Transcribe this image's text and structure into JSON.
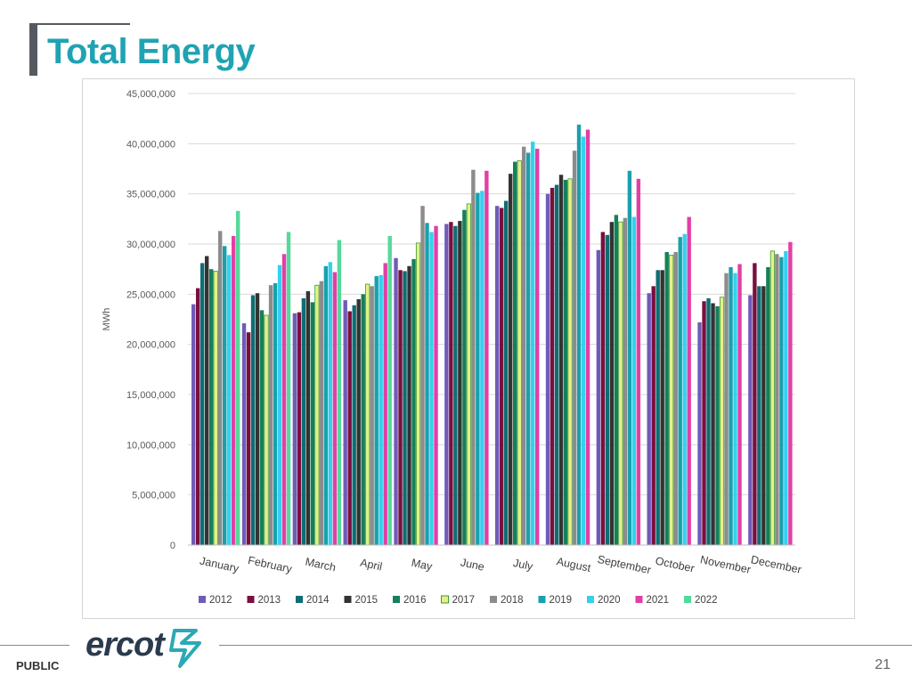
{
  "header": {
    "title": "Total Energy"
  },
  "footer": {
    "public_label": "PUBLIC",
    "page_number": "21",
    "logo_text": "ercot"
  },
  "colors": {
    "title": "#1fa3b3",
    "grid": "#d9d9d9",
    "axis_text": "#595959"
  },
  "chart_data": {
    "type": "bar",
    "title": "",
    "xlabel": "",
    "ylabel": "MWh",
    "ylim": [
      0,
      45000000
    ],
    "yticks": [
      0,
      5000000,
      10000000,
      15000000,
      20000000,
      25000000,
      30000000,
      35000000,
      40000000,
      45000000
    ],
    "ytick_labels": [
      "0",
      "5,000,000",
      "10,000,000",
      "15,000,000",
      "20,000,000",
      "25,000,000",
      "30,000,000",
      "35,000,000",
      "40,000,000",
      "45,000,000"
    ],
    "grid": true,
    "legend_position": "bottom",
    "categories": [
      "January",
      "February",
      "March",
      "April",
      "May",
      "June",
      "July",
      "August",
      "September",
      "October",
      "November",
      "December"
    ],
    "series": [
      {
        "name": "2012",
        "color": "#6f5bb8",
        "values": [
          24000000,
          22100000,
          23100000,
          24400000,
          28600000,
          32000000,
          33800000,
          35000000,
          29400000,
          25100000,
          22200000,
          24900000
        ]
      },
      {
        "name": "2013",
        "color": "#7a0f3e",
        "values": [
          25600000,
          21200000,
          23200000,
          23300000,
          27400000,
          32200000,
          33600000,
          35600000,
          31200000,
          25800000,
          24300000,
          28100000
        ]
      },
      {
        "name": "2014",
        "color": "#0e6e73",
        "values": [
          28100000,
          24900000,
          24600000,
          23900000,
          27300000,
          31800000,
          34300000,
          35900000,
          30900000,
          27400000,
          24600000,
          25800000
        ]
      },
      {
        "name": "2015",
        "color": "#333333",
        "values": [
          28800000,
          25100000,
          25300000,
          24500000,
          27800000,
          32300000,
          37000000,
          36900000,
          32200000,
          27400000,
          24100000,
          25800000
        ]
      },
      {
        "name": "2016",
        "color": "#15805a",
        "values": [
          27500000,
          23400000,
          24200000,
          25000000,
          28500000,
          33400000,
          38200000,
          36400000,
          32900000,
          29200000,
          23800000,
          27700000
        ]
      },
      {
        "name": "2017",
        "color": "#e5f08a",
        "stroke": "#3a9a3a",
        "values": [
          27300000,
          22900000,
          25900000,
          26000000,
          30100000,
          34000000,
          38300000,
          36500000,
          32200000,
          28900000,
          24700000,
          29300000
        ]
      },
      {
        "name": "2018",
        "color": "#8c8c8c",
        "values": [
          31300000,
          25900000,
          26300000,
          25800000,
          33800000,
          37400000,
          39700000,
          39300000,
          32600000,
          29200000,
          27100000,
          29000000
        ]
      },
      {
        "name": "2019",
        "color": "#1aa0ad",
        "values": [
          29800000,
          26100000,
          27800000,
          26800000,
          32100000,
          35100000,
          39100000,
          41900000,
          37300000,
          30700000,
          27700000,
          28700000
        ]
      },
      {
        "name": "2020",
        "color": "#33d1ee",
        "values": [
          28900000,
          27900000,
          28200000,
          26900000,
          31200000,
          35300000,
          40200000,
          40700000,
          32700000,
          31000000,
          27100000,
          29300000
        ]
      },
      {
        "name": "2021",
        "color": "#e23fa6",
        "values": [
          30800000,
          29000000,
          27200000,
          28100000,
          31800000,
          37300000,
          39500000,
          41400000,
          36500000,
          32700000,
          28000000,
          30200000
        ]
      },
      {
        "name": "2022",
        "color": "#55d99a",
        "values": [
          33300000,
          31200000,
          30400000,
          30800000,
          null,
          null,
          null,
          null,
          null,
          null,
          null,
          null
        ]
      }
    ]
  }
}
